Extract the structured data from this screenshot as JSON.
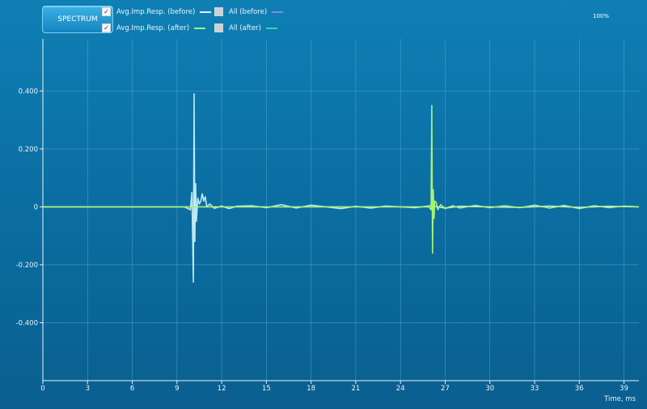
{
  "toolbar": {
    "spectrum_label": "SPECTRUM",
    "zoom": "100%"
  },
  "legend": [
    {
      "label": "Avg.Imp.Resp. (before)",
      "checked": true,
      "color": "#dff3ff"
    },
    {
      "label": "All (before)",
      "checked": false,
      "color": "#7a8fe8"
    },
    {
      "label": "Avg.Imp.Resp. (after)",
      "checked": true,
      "color": "#9cf58a"
    },
    {
      "label": "All (after)",
      "checked": false,
      "color": "#2fd9a6"
    }
  ],
  "colors": {
    "before": "#bfe8f0",
    "after": "#a8f07a",
    "grid": "#5fb0d6",
    "axis": "#e8f4fb"
  },
  "chart_data": {
    "type": "line",
    "xlabel": "Time, ms",
    "ylabel": "",
    "xlim": [
      0,
      40
    ],
    "ylim": [
      -0.6,
      0.58
    ],
    "xticks": [
      0,
      3,
      6,
      9,
      12,
      15,
      18,
      21,
      24,
      27,
      30,
      33,
      36,
      39
    ],
    "xtick_labels": [
      "0",
      "3",
      "6",
      "9",
      "12",
      "15",
      "18",
      "21",
      "24",
      "27",
      "30",
      "33",
      "36",
      "39"
    ],
    "yticks": [
      0.4,
      0.2,
      0,
      -0.2,
      -0.4
    ],
    "ytick_labels": [
      "0.400",
      "0.200",
      "0",
      "-0.200",
      "-0.400"
    ],
    "grid": true,
    "series": [
      {
        "name": "Avg.Imp.Resp. (before)",
        "x": [
          0,
          9.5,
          9.9,
          10.0,
          10.1,
          10.15,
          10.2,
          10.25,
          10.3,
          10.4,
          10.5,
          10.6,
          10.7,
          10.8,
          10.9,
          11.0,
          11.2,
          11.5,
          12.0,
          12.5,
          13,
          14,
          15,
          16,
          17,
          18,
          19,
          20,
          21,
          22,
          23,
          24,
          25,
          26,
          27,
          28,
          30,
          32,
          34,
          36,
          38,
          40
        ],
        "y": [
          0,
          0,
          -0.01,
          0.05,
          -0.26,
          0.39,
          -0.12,
          0.08,
          -0.05,
          0.03,
          0.01,
          0.02,
          0.045,
          0.02,
          0.035,
          0.0,
          0.01,
          -0.005,
          0.003,
          -0.006,
          0.002,
          0.004,
          -0.003,
          0.008,
          -0.004,
          0.006,
          0.0,
          -0.006,
          0.002,
          -0.004,
          0.003,
          0.0,
          -0.003,
          0.004,
          -0.004,
          0.002,
          0.0,
          -0.002,
          0.003,
          -0.002,
          0.002,
          0.0
        ]
      },
      {
        "name": "Avg.Imp.Resp. (after)",
        "x": [
          0,
          25.9,
          26.05,
          26.1,
          26.15,
          26.2,
          26.25,
          26.3,
          26.4,
          26.5,
          26.7,
          27.0,
          27.5,
          28,
          29,
          30,
          31,
          32,
          33,
          34,
          35,
          36,
          37,
          38,
          39,
          40
        ],
        "y": [
          0,
          0,
          -0.01,
          0.35,
          -0.16,
          0.06,
          -0.04,
          0.02,
          0.015,
          -0.01,
          0.008,
          -0.006,
          0.004,
          -0.004,
          0.005,
          -0.003,
          0.004,
          -0.003,
          0.006,
          -0.004,
          0.005,
          -0.006,
          0.004,
          -0.003,
          0.003,
          0.0
        ]
      }
    ]
  }
}
